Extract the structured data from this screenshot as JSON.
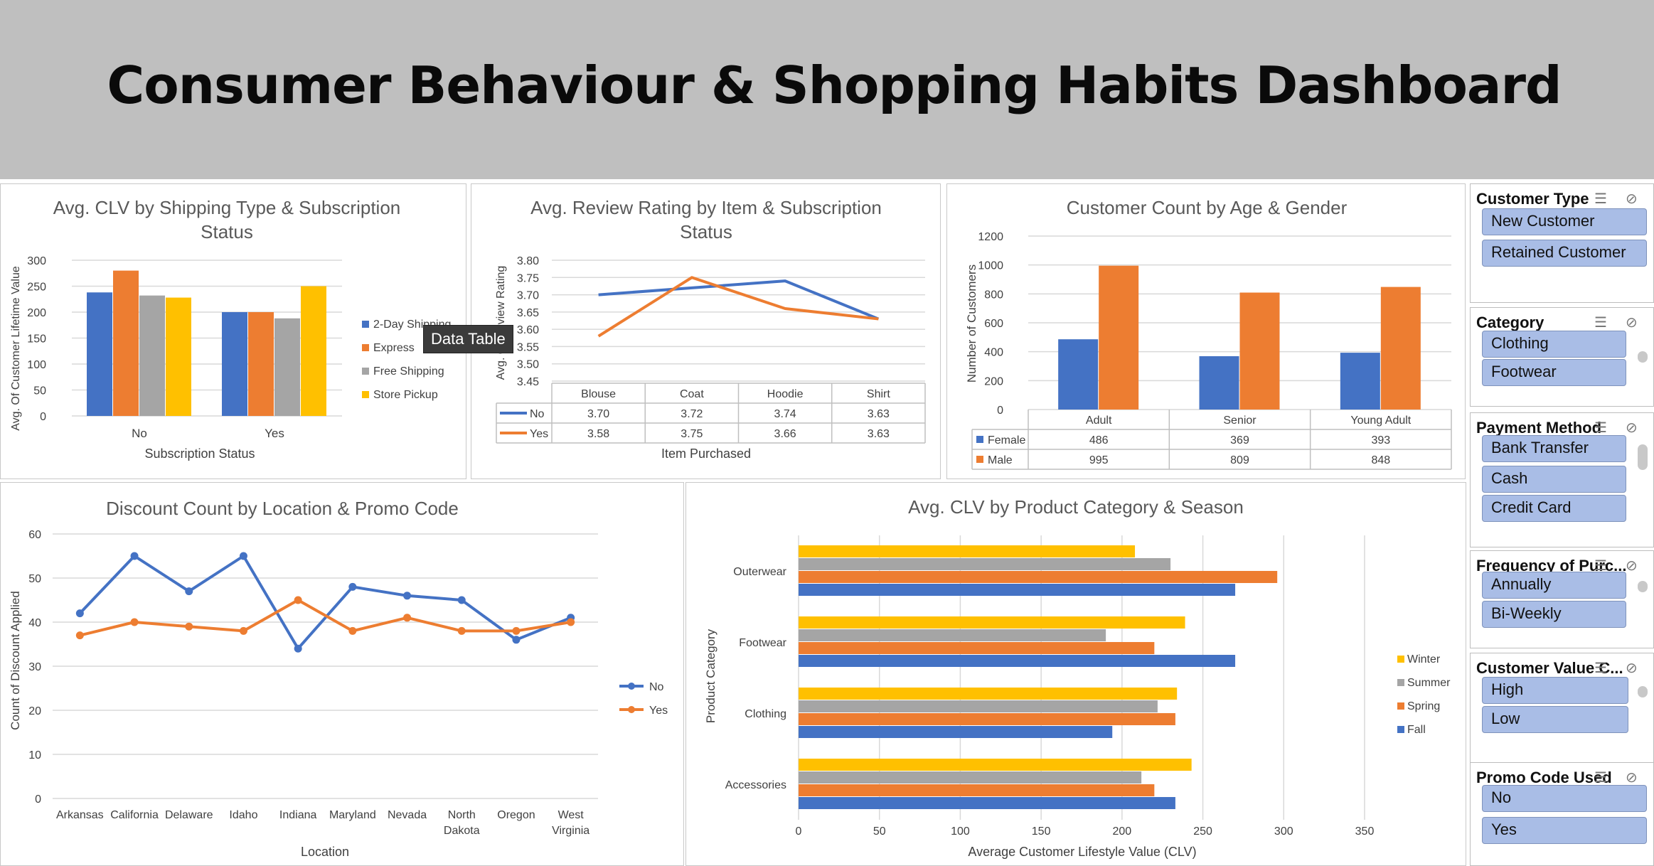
{
  "title": "Consumer Behaviour & Shopping Habits Dashboard",
  "tooltip": "Data Table",
  "colors": {
    "blue": "#4472c4",
    "orange": "#ed7d31",
    "gray": "#a5a5a5",
    "yellow": "#ffc000",
    "banner": "#bfbfbf",
    "slicer_item": "#a9bde6"
  },
  "chart_data": [
    {
      "type": "bar",
      "title": "Avg. CLV by Shipping Type & Subscription Status",
      "xlabel": "Subscription Status",
      "ylabel": "Avg. Of Customer Lifetime Value",
      "categories": [
        "No",
        "Yes"
      ],
      "ylim": [
        0,
        300
      ],
      "yticks": [
        "0",
        "50",
        "100",
        "150",
        "200",
        "250",
        "300"
      ],
      "legend": "right",
      "series": [
        {
          "name": "2-Day Shipping",
          "values": [
            238,
            200
          ],
          "color": "#4472c4"
        },
        {
          "name": "Express",
          "values": [
            280,
            200
          ],
          "color": "#ed7d31"
        },
        {
          "name": "Free Shipping",
          "values": [
            232,
            188
          ],
          "color": "#a5a5a5"
        },
        {
          "name": "Store Pickup",
          "values": [
            228,
            250
          ],
          "color": "#ffc000"
        }
      ]
    },
    {
      "type": "line",
      "title": "Avg. Review Rating by Item & Subscription Status",
      "xlabel": "Item Purchased",
      "ylabel": "Avg. Of Review Rating",
      "categories": [
        "Blouse",
        "Coat",
        "Hoodie",
        "Shirt"
      ],
      "ylim": [
        3.45,
        3.8
      ],
      "yticks": [
        "3.45",
        "3.50",
        "3.55",
        "3.60",
        "3.65",
        "3.70",
        "3.75",
        "3.80"
      ],
      "data_table": true,
      "series": [
        {
          "name": "No",
          "values": [
            3.7,
            3.72,
            3.74,
            3.63
          ],
          "labels": [
            "3.70",
            "3.72",
            "3.74",
            "3.63"
          ],
          "color": "#4472c4"
        },
        {
          "name": "Yes",
          "values": [
            3.58,
            3.75,
            3.66,
            3.63
          ],
          "labels": [
            "3.58",
            "3.75",
            "3.66",
            "3.63"
          ],
          "color": "#ed7d31"
        }
      ]
    },
    {
      "type": "bar",
      "title": "Customer Count by Age & Gender",
      "ylabel": "Number of Customers",
      "categories": [
        "Adult",
        "Senior",
        "Young Adult"
      ],
      "ylim": [
        0,
        1200
      ],
      "yticks": [
        "0",
        "200",
        "400",
        "600",
        "800",
        "1000",
        "1200"
      ],
      "data_table": true,
      "series": [
        {
          "name": "Female",
          "values": [
            486,
            369,
            393
          ],
          "labels": [
            "486",
            "369",
            "393"
          ],
          "color": "#4472c4"
        },
        {
          "name": "Male",
          "values": [
            995,
            809,
            848
          ],
          "labels": [
            "995",
            "809",
            "848"
          ],
          "color": "#ed7d31"
        }
      ]
    },
    {
      "type": "line",
      "title": "Discount Count by Location & Promo Code",
      "xlabel": "Location",
      "ylabel": "Count of Discount Applied",
      "categories": [
        "Arkansas",
        "California",
        "Delaware",
        "Idaho",
        "Indiana",
        "Maryland",
        "Nevada",
        "North Dakota",
        "Oregon",
        "West Virginia"
      ],
      "ylim": [
        0,
        60
      ],
      "yticks": [
        "0",
        "10",
        "20",
        "30",
        "40",
        "50",
        "60"
      ],
      "legend": "right",
      "series": [
        {
          "name": "No",
          "values": [
            42,
            55,
            47,
            55,
            34,
            48,
            46,
            45,
            36,
            41
          ],
          "color": "#4472c4"
        },
        {
          "name": "Yes",
          "values": [
            37,
            40,
            39,
            38,
            45,
            38,
            41,
            38,
            38,
            40
          ],
          "color": "#ed7d31"
        }
      ]
    },
    {
      "type": "bar",
      "orientation": "horizontal",
      "title": "Avg. CLV by Product Category & Season",
      "xlabel": "Average Customer Lifestyle Value (CLV)",
      "ylabel": "Product Category",
      "categories": [
        "Accessories",
        "Clothing",
        "Footwear",
        "Outerwear"
      ],
      "xlim": [
        0,
        350
      ],
      "xticks": [
        "0",
        "50",
        "100",
        "150",
        "200",
        "250",
        "300",
        "350"
      ],
      "legend": "right",
      "series": [
        {
          "name": "Fall",
          "values": [
            233,
            194,
            270,
            270
          ],
          "color": "#4472c4"
        },
        {
          "name": "Spring",
          "values": [
            220,
            233,
            220,
            296
          ],
          "color": "#ed7d31"
        },
        {
          "name": "Summer",
          "values": [
            212,
            222,
            190,
            230
          ],
          "color": "#a5a5a5"
        },
        {
          "name": "Winter",
          "values": [
            243,
            234,
            239,
            208
          ],
          "color": "#ffc000"
        }
      ]
    }
  ],
  "slicers": [
    {
      "title": "Customer Type",
      "items": [
        "New Customer",
        "Retained Customer"
      ]
    },
    {
      "title": "Category",
      "items": [
        "Clothing",
        "Footwear"
      ]
    },
    {
      "title": "Payment Method",
      "items": [
        "Bank Transfer",
        "Cash",
        "Credit Card"
      ]
    },
    {
      "title": "Frequency of Purc...",
      "items": [
        "Annually",
        "Bi-Weekly"
      ]
    },
    {
      "title": "Customer Value C...",
      "items": [
        "High",
        "Low"
      ]
    },
    {
      "title": "Promo Code Used",
      "items": [
        "No",
        "Yes"
      ]
    }
  ]
}
